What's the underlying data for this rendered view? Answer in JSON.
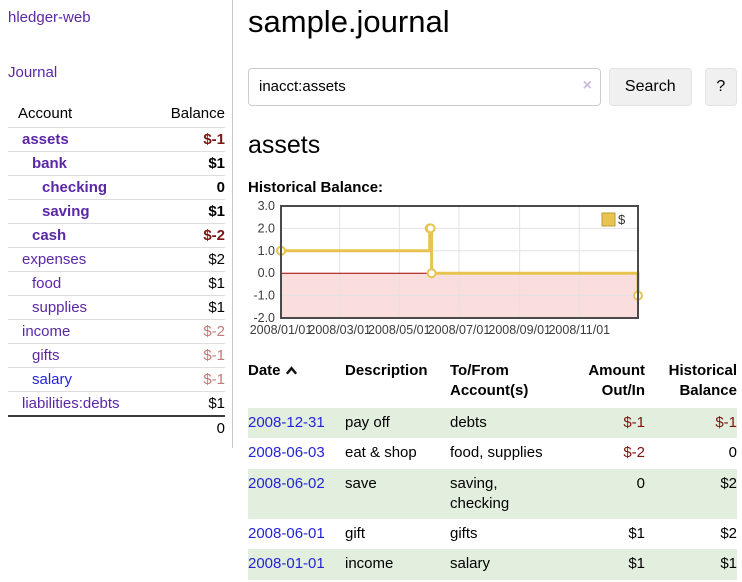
{
  "app": {
    "brand": "hledger-web",
    "nav": {
      "journal": "Journal"
    }
  },
  "sidebar": {
    "columns": {
      "account": "Account",
      "balance": "Balance"
    },
    "accounts": [
      {
        "name": "assets",
        "balance": "$-1",
        "level": 1,
        "highlighted": true
      },
      {
        "name": "bank",
        "balance": "$1",
        "level": 2,
        "highlighted": true
      },
      {
        "name": "checking",
        "balance": "0",
        "level": 3,
        "highlighted": true
      },
      {
        "name": "saving",
        "balance": "$1",
        "level": 3,
        "highlighted": true
      },
      {
        "name": "cash",
        "balance": "$-2",
        "level": 2,
        "highlighted": true
      },
      {
        "name": "expenses",
        "balance": "$2",
        "level": 1,
        "highlighted": false
      },
      {
        "name": "food",
        "balance": "$1",
        "level": 2,
        "highlighted": false
      },
      {
        "name": "supplies",
        "balance": "$1",
        "level": 2,
        "highlighted": false
      },
      {
        "name": "income",
        "balance": "$-2",
        "level": 1,
        "highlighted": false
      },
      {
        "name": "gifts",
        "balance": "$-1",
        "level": 2,
        "highlighted": false
      },
      {
        "name": "salary",
        "balance": "$-1",
        "level": 2,
        "highlighted": false,
        "unvisited": true
      },
      {
        "name": "liabilities:debts",
        "balance": "$1",
        "level": 1,
        "highlighted": false
      }
    ],
    "total": "0"
  },
  "main": {
    "title": "sample.journal",
    "search": {
      "value": "inacct:assets",
      "clear_icon": "×",
      "search_button": "Search",
      "help_button": "?"
    },
    "account_heading": "assets",
    "chart_title": "Historical Balance:"
  },
  "chart_data": {
    "type": "line",
    "subtype": "step-after",
    "title": "Historical Balance",
    "series": [
      {
        "name": "$",
        "color": "#e8c351",
        "points": [
          [
            "2008-01-01",
            1
          ],
          [
            "2008-06-01",
            2
          ],
          [
            "2008-06-02",
            2
          ],
          [
            "2008-06-03",
            0
          ],
          [
            "2008-12-31",
            -1
          ]
        ]
      }
    ],
    "x_range": [
      "2008-01-01",
      "2008-12-31"
    ],
    "ylim": [
      -2,
      3
    ],
    "y_ticks": [
      {
        "value": 3,
        "label": "3.0"
      },
      {
        "value": 2,
        "label": "2.0"
      },
      {
        "value": 1,
        "label": "1.0"
      },
      {
        "value": 0,
        "label": "0.0"
      },
      {
        "value": -1,
        "label": "-1.0"
      },
      {
        "value": -2,
        "label": "-2.0"
      }
    ],
    "x_ticks": [
      {
        "date": "2008-01-01",
        "label": "2008/01/01"
      },
      {
        "date": "2008-03-01",
        "label": "2008/03/01"
      },
      {
        "date": "2008-05-01",
        "label": "2008/05/01"
      },
      {
        "date": "2008-07-01",
        "label": "2008/07/01"
      },
      {
        "date": "2008-09-01",
        "label": "2008/09/01"
      },
      {
        "date": "2008-11-01",
        "label": "2008/11/01"
      }
    ],
    "legend": {
      "position": "top-right",
      "entries": [
        {
          "label": "$",
          "color": "#e8c351"
        }
      ]
    },
    "grid": true,
    "grid_color": "#e3e3e3",
    "zero_line_color": "#a40000",
    "negative_region_color": "#fadddd",
    "plot_border_color": "#4a4a4a"
  },
  "register": {
    "columns": [
      {
        "label": "Date",
        "sorted": "ascending"
      },
      {
        "label": "Description"
      },
      {
        "label": "To/From Account(s)"
      },
      {
        "label": "Amount Out/In"
      },
      {
        "label": "Historical Balance"
      }
    ],
    "rows": [
      {
        "date": "2008-12-31",
        "description": "pay off",
        "accounts": "debts",
        "amount": "$-1",
        "balance": "$-1"
      },
      {
        "date": "2008-06-03",
        "description": "eat & shop",
        "accounts": "food, supplies",
        "amount": "$-2",
        "balance": "0"
      },
      {
        "date": "2008-06-02",
        "description": "save",
        "accounts": "saving, checking",
        "amount": "0",
        "balance": "$2"
      },
      {
        "date": "2008-06-01",
        "description": "gift",
        "accounts": "gifts",
        "amount": "$1",
        "balance": "$2"
      },
      {
        "date": "2008-01-01",
        "description": "income",
        "accounts": "salary",
        "amount": "$1",
        "balance": "$1"
      }
    ]
  }
}
